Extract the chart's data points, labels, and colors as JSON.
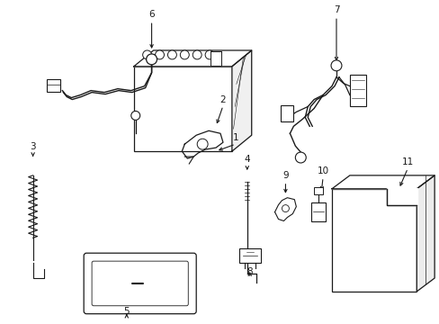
{
  "background_color": "#ffffff",
  "line_color": "#1a1a1a",
  "line_width": 0.9,
  "label_fontsize": 7.5,
  "fig_width": 4.89,
  "fig_height": 3.6,
  "dpi": 100
}
